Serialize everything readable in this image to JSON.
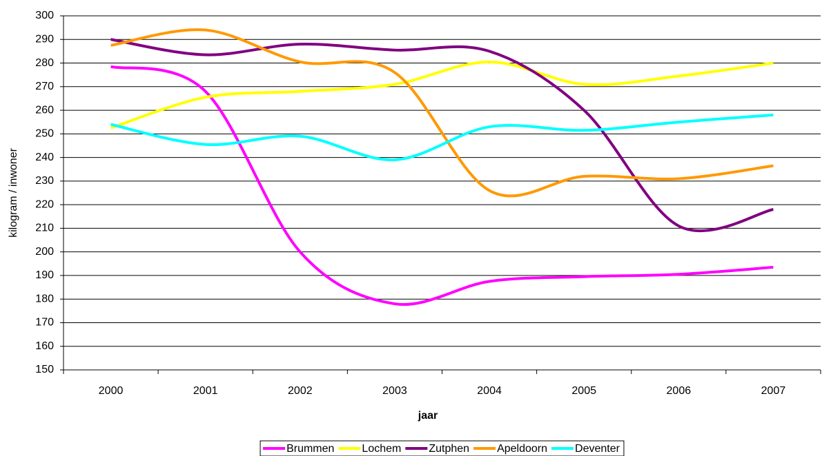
{
  "chart_data": {
    "type": "line",
    "x_label": "jaar",
    "y_label": "kilogram / inwoner",
    "categories": [
      "2000",
      "2001",
      "2002",
      "2003",
      "2004",
      "2005",
      "2006",
      "2007"
    ],
    "series": [
      {
        "name": "Brummen",
        "color": "#ff00ff",
        "values": [
          278.5,
          268,
          200,
          178,
          187.5,
          189.5,
          190.5,
          193.5
        ]
      },
      {
        "name": "Lochem",
        "color": "#ffff00",
        "values": [
          252.5,
          265.5,
          268,
          271,
          280.5,
          271,
          274.5,
          280
        ]
      },
      {
        "name": "Zutphen",
        "color": "#800080",
        "values": [
          290,
          283.5,
          288,
          285.5,
          285,
          260,
          211,
          218
        ]
      },
      {
        "name": "Apeldoorn",
        "color": "#ff9900",
        "values": [
          287.5,
          294,
          280.5,
          276,
          226,
          232,
          231,
          236.5
        ]
      },
      {
        "name": "Deventer",
        "color": "#00ffff",
        "values": [
          254,
          245.5,
          249,
          239,
          253,
          251.5,
          255,
          258
        ]
      }
    ],
    "ylim": [
      150,
      300
    ],
    "yticks": [
      150,
      160,
      170,
      180,
      190,
      200,
      210,
      220,
      230,
      240,
      250,
      260,
      270,
      280,
      290,
      300
    ],
    "grid": true,
    "smooth": true,
    "legend": "bottom"
  }
}
